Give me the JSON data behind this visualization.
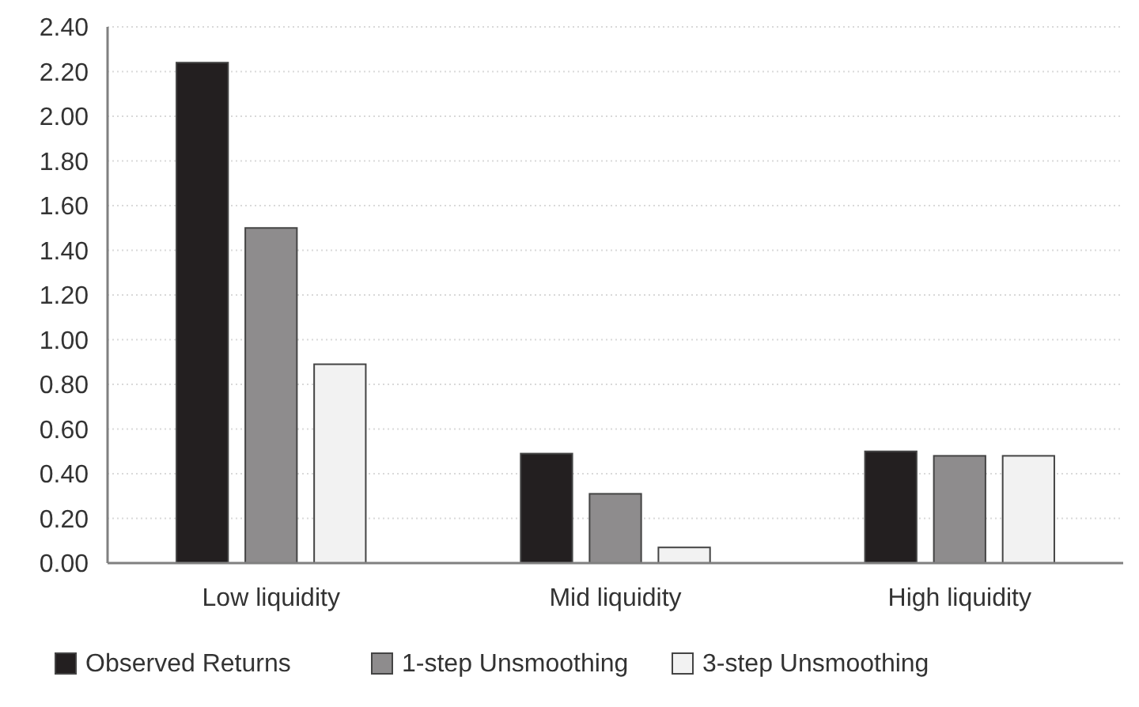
{
  "chart_data": {
    "type": "bar",
    "categories": [
      "Low liquidity",
      "Mid liquidity",
      "High liquidity"
    ],
    "series": [
      {
        "name": "Observed Returns",
        "color": "#231f20",
        "values": [
          2.24,
          0.49,
          0.5
        ]
      },
      {
        "name": "1-step Unsmoothing",
        "color": "#8e8c8d",
        "values": [
          1.5,
          0.31,
          0.48
        ]
      },
      {
        "name": "3-step Unsmoothing",
        "color": "#f2f2f2",
        "values": [
          0.89,
          0.07,
          0.48
        ]
      }
    ],
    "ylim": [
      0,
      2.4
    ],
    "yticks": [
      {
        "value": 0,
        "label": "0.00"
      },
      {
        "value": 0.2,
        "label": "0.20"
      },
      {
        "value": 0.4,
        "label": "0.40"
      },
      {
        "value": 0.6,
        "label": "0.60"
      },
      {
        "value": 0.8,
        "label": "0.80"
      },
      {
        "value": 1,
        "label": "1.00"
      },
      {
        "value": 1.2,
        "label": "1.20"
      },
      {
        "value": 1.4,
        "label": "1.40"
      },
      {
        "value": 1.6,
        "label": "1.60"
      },
      {
        "value": 1.8,
        "label": "1.80"
      },
      {
        "value": 2,
        "label": "2.00"
      },
      {
        "value": 2.2,
        "label": "2.20"
      },
      {
        "value": 2.4,
        "label": "2.40"
      }
    ],
    "grid": "y",
    "legend": "bottom"
  }
}
